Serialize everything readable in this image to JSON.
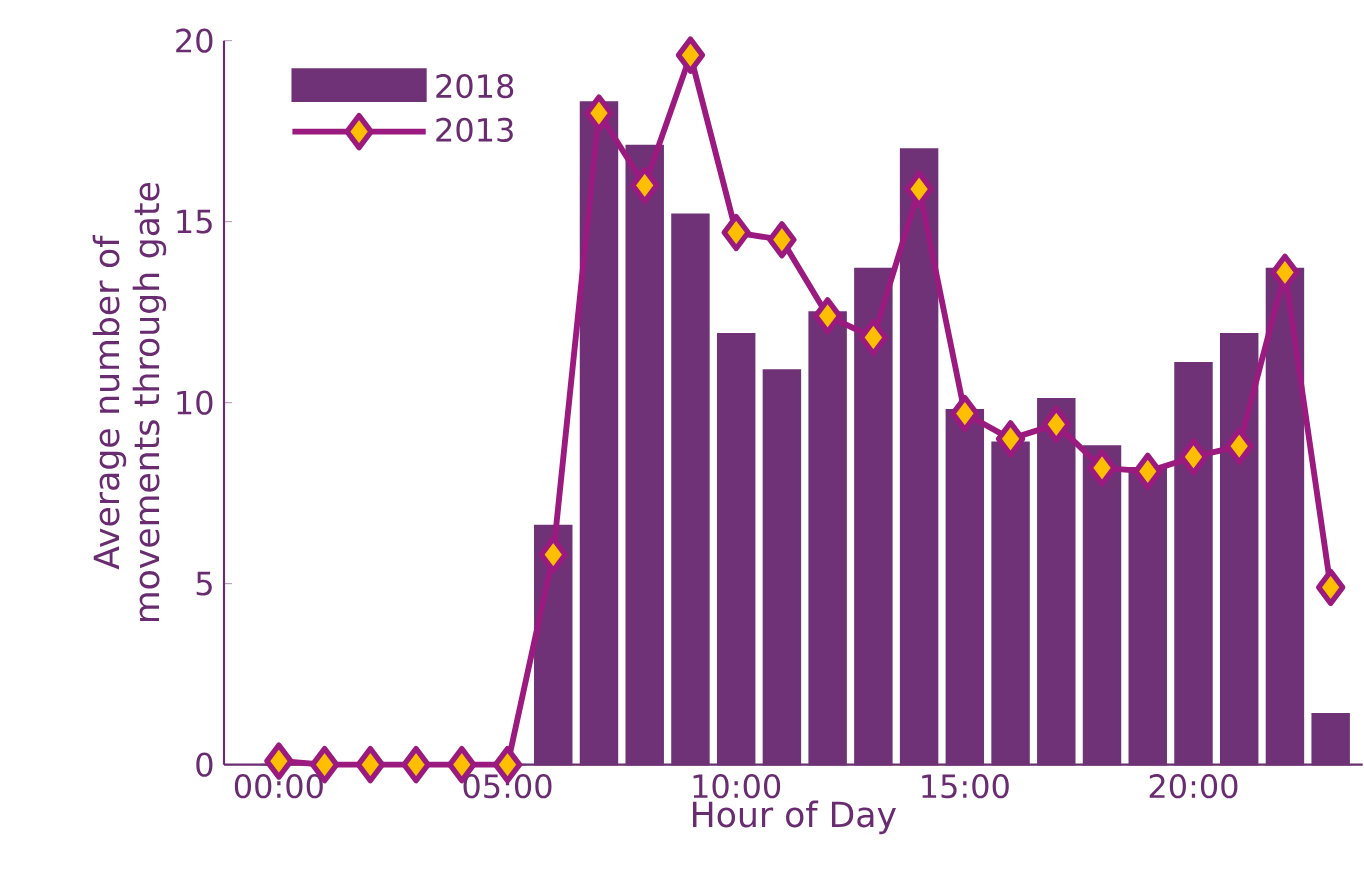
{
  "chart_data": {
    "type": "bar",
    "xlabel": "Hour of Day",
    "ylabel": "Average number of movements through gate",
    "x": [
      0,
      1,
      2,
      3,
      4,
      5,
      6,
      7,
      8,
      9,
      10,
      11,
      12,
      13,
      14,
      15,
      16,
      17,
      18,
      19,
      20,
      21,
      22,
      23
    ],
    "series": [
      {
        "name": "2018",
        "color": "#6f3277",
        "values": [
          0,
          0,
          0,
          0,
          0,
          0,
          6.6,
          18.3,
          17.1,
          15.2,
          11.9,
          10.9,
          12.5,
          13.7,
          17.0,
          9.8,
          8.9,
          10.1,
          8.8,
          8.2,
          11.1,
          11.9,
          13.7,
          1.4
        ]
      },
      {
        "name": "2013",
        "type": "line",
        "color": "#9b1a7f",
        "marker": "diamond",
        "values": [
          0.1,
          0,
          0,
          0,
          0,
          0,
          5.8,
          18.0,
          16.0,
          19.6,
          14.7,
          14.5,
          12.4,
          11.8,
          15.9,
          9.7,
          9.0,
          9.4,
          8.2,
          8.1,
          8.5,
          8.8,
          13.6,
          4.9
        ]
      }
    ],
    "xlim": [
      -1.2,
      23.7
    ],
    "ylim": [
      0,
      20
    ],
    "xticks": [
      {
        "value": 0,
        "label": "00:00"
      },
      {
        "value": 5,
        "label": "05:00"
      },
      {
        "value": 10,
        "label": "10:00"
      },
      {
        "value": 15,
        "label": "15:00"
      },
      {
        "value": 20,
        "label": "20:00"
      }
    ],
    "yticks": [
      0,
      5,
      10,
      15,
      20
    ],
    "legend": "top left",
    "grid": false
  }
}
